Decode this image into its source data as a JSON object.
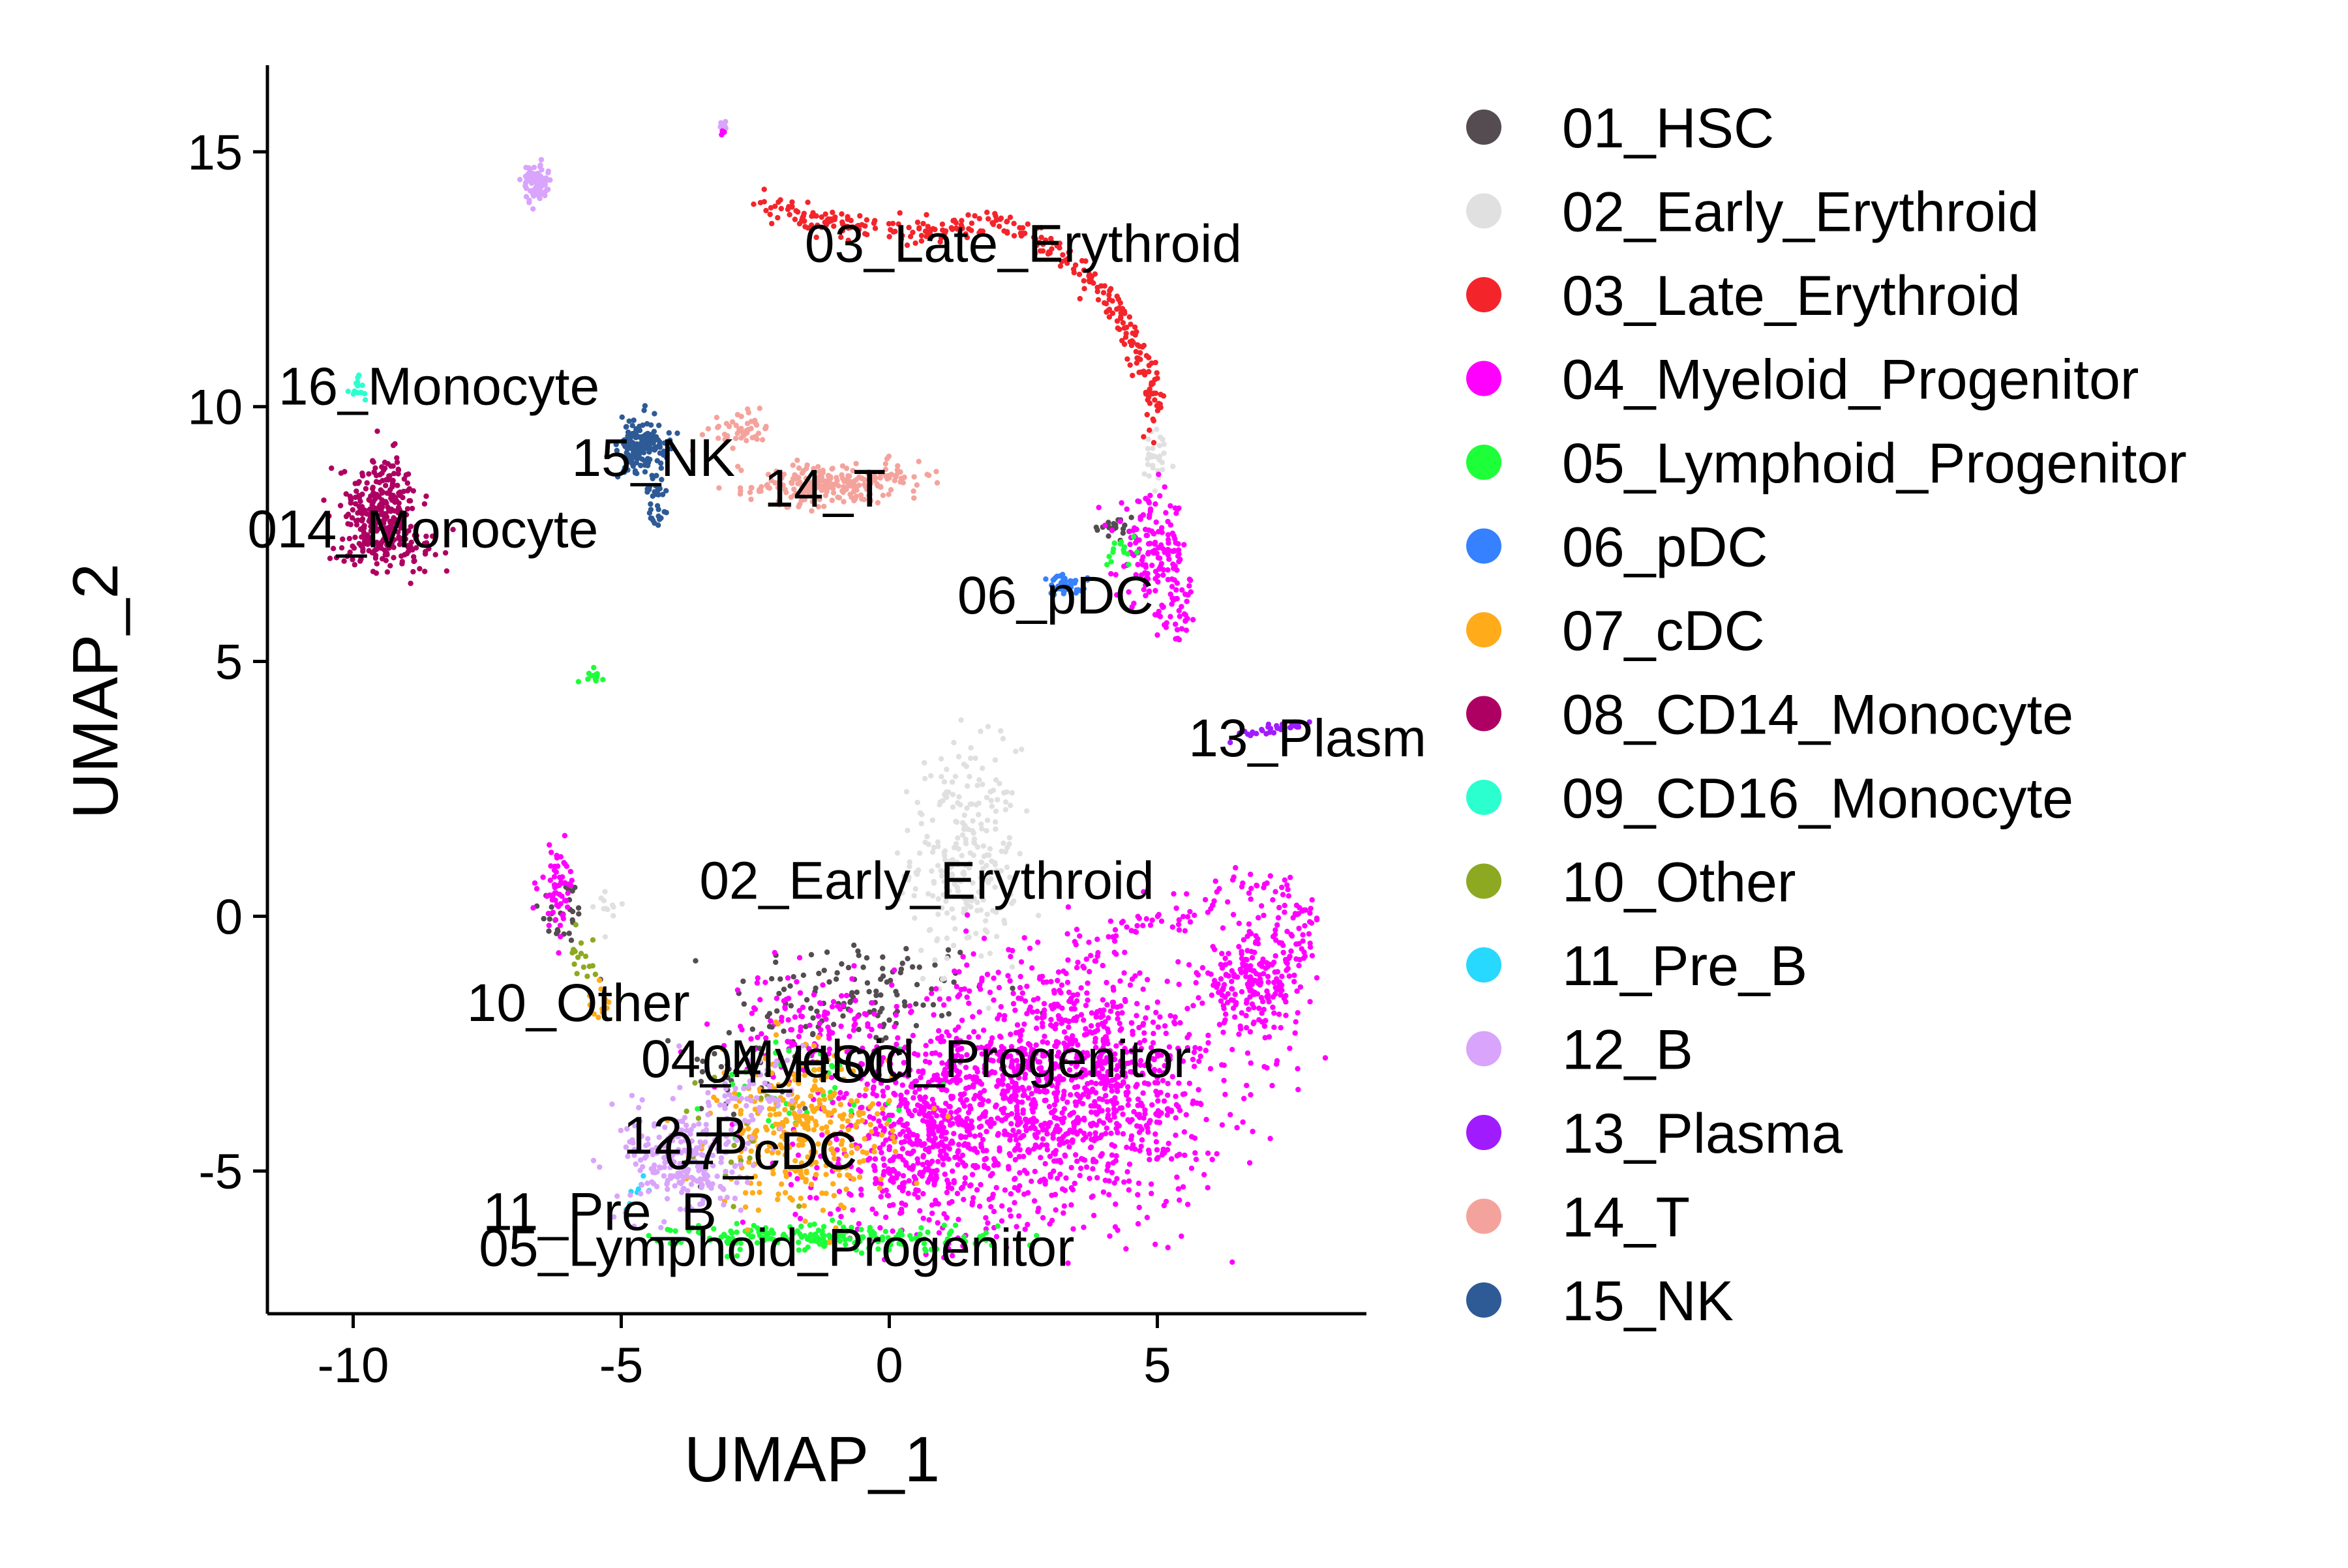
{
  "chart_data": {
    "type": "scatter",
    "xlabel": "UMAP_1",
    "ylabel": "UMAP_2",
    "xlim": [
      -11.6,
      8.9
    ],
    "ylim": [
      -7.8,
      16.7
    ],
    "xticks": [
      -10,
      -5,
      0,
      5
    ],
    "yticks": [
      -5,
      0,
      5,
      10,
      15
    ],
    "grid": false,
    "legend_position": "right",
    "series": [
      {
        "name": "01_HSC",
        "color": "#544C50",
        "blobs": [
          [
            -0.5,
            -1.5,
            2.2,
            1.0,
            120
          ],
          [
            4.2,
            7.6,
            0.4,
            0.3,
            20
          ],
          [
            -6.1,
            0.1,
            0.4,
            0.6,
            30
          ],
          [
            -2.5,
            -3.0,
            1.2,
            1.0,
            40
          ]
        ]
      },
      {
        "name": "02_Early_Erythroid",
        "color": "#E0E0E0",
        "blobs": [
          [
            1.4,
            1.2,
            0.9,
            1.9,
            260
          ],
          [
            5.0,
            8.9,
            0.3,
            0.6,
            30
          ],
          [
            -5.3,
            0.2,
            0.3,
            0.4,
            12
          ]
        ]
      },
      {
        "name": "03_Late_Erythroid",
        "color": "#F4242B",
        "curve": [
          [
            -2.4,
            13.9
          ],
          [
            -0.5,
            13.5
          ],
          [
            1.0,
            13.4
          ],
          [
            2.0,
            13.7
          ],
          [
            3.2,
            13.0
          ],
          [
            4.2,
            12.0
          ],
          [
            4.8,
            10.8
          ],
          [
            5.0,
            9.6
          ]
        ],
        "spread": 0.12,
        "count": 320
      },
      {
        "name": "04_Myeloid_Progenitor",
        "color": "#FF00FF",
        "blobs": [
          [
            3.2,
            -3.3,
            2.8,
            2.2,
            1300
          ],
          [
            0.6,
            -4.5,
            2.0,
            1.6,
            500
          ],
          [
            6.8,
            -1.3,
            0.9,
            0.9,
            200
          ],
          [
            4.9,
            7.2,
            0.6,
            0.9,
            140
          ],
          [
            5.4,
            6.0,
            0.4,
            0.6,
            50
          ],
          [
            -6.2,
            0.6,
            0.3,
            0.7,
            60
          ],
          [
            -1.5,
            -2.2,
            1.3,
            0.9,
            120
          ]
        ],
        "curve": [
          [
            3.5,
            -1.0
          ],
          [
            4.5,
            -0.2
          ],
          [
            6.0,
            0.2
          ],
          [
            7.2,
            0.6
          ],
          [
            7.7,
            0.0
          ],
          [
            7.5,
            -0.8
          ],
          [
            7.0,
            -1.3
          ]
        ],
        "spread": 0.22,
        "count": 140
      },
      {
        "name": "05_Lymphoid_Progenitor",
        "color": "#1DFF38",
        "blobs": [
          [
            -1.0,
            -6.3,
            2.6,
            0.25,
            200
          ],
          [
            -5.5,
            4.7,
            0.15,
            0.12,
            14
          ],
          [
            4.3,
            7.2,
            0.3,
            0.3,
            15
          ],
          [
            -1.5,
            -3.5,
            1.5,
            1.0,
            40
          ]
        ]
      },
      {
        "name": "06_pDC",
        "color": "#3581FF",
        "blobs": [
          [
            3.3,
            6.5,
            0.4,
            0.18,
            40
          ]
        ]
      },
      {
        "name": "07_cDC",
        "color": "#FFAB1A",
        "blobs": [
          [
            -1.6,
            -4.2,
            1.5,
            1.4,
            320
          ],
          [
            -5.4,
            -1.8,
            0.2,
            0.6,
            12
          ]
        ]
      },
      {
        "name": "08_CD14_Monocyte",
        "color": "#AD0062",
        "blobs": [
          [
            -9.5,
            8.0,
            0.65,
            0.9,
            260
          ],
          [
            -9.2,
            7.3,
            0.9,
            0.35,
            80
          ]
        ]
      },
      {
        "name": "09_CD16_Monocyte",
        "color": "#2BFFD0",
        "blobs": [
          [
            -9.9,
            10.4,
            0.12,
            0.25,
            14
          ]
        ]
      },
      {
        "name": "10_Other",
        "color": "#8CA921",
        "blobs": [
          [
            -5.7,
            -0.8,
            0.25,
            0.6,
            16
          ],
          [
            -3.0,
            -4.2,
            1.2,
            1.0,
            20
          ]
        ]
      },
      {
        "name": "11_Pre_B",
        "color": "#27D8FF",
        "blobs": [
          [
            -4.6,
            -5.5,
            0.5,
            0.5,
            8
          ]
        ]
      },
      {
        "name": "12_B",
        "color": "#D9A4FB",
        "blobs": [
          [
            -6.6,
            14.4,
            0.2,
            0.35,
            90
          ],
          [
            -3.8,
            -4.8,
            1.0,
            1.0,
            240
          ],
          [
            -2.5,
            -3.5,
            0.8,
            0.8,
            60
          ]
        ]
      },
      {
        "name": "13_Plasma",
        "color": "#A01CFF",
        "curve": [
          [
            6.3,
            3.5
          ],
          [
            7.8,
            3.8
          ]
        ],
        "spread": 0.05,
        "count": 30
      },
      {
        "name": "14_T",
        "color": "#F4A39C",
        "blobs": [
          [
            -1.1,
            8.5,
            1.6,
            0.35,
            240
          ],
          [
            -2.7,
            9.5,
            0.5,
            0.3,
            50
          ]
        ]
      },
      {
        "name": "15_NK",
        "color": "#2E5A96",
        "blobs": [
          [
            -4.6,
            9.2,
            0.4,
            0.5,
            170
          ],
          [
            -4.3,
            8.0,
            0.2,
            0.5,
            30
          ]
        ]
      }
    ],
    "extra_points": [
      {
        "series": "12_B",
        "x": -3.1,
        "y": 15.5,
        "count": 6,
        "sd": 0.04
      },
      {
        "series": "04_Myeloid_Progenitor",
        "x": -3.1,
        "y": 15.4,
        "count": 3,
        "sd": 0.03
      }
    ],
    "cluster_labels": [
      {
        "text": "03_Late_Erythroid",
        "x": 2.5,
        "y": 13.2
      },
      {
        "text": "16_Monocyte",
        "x": -8.4,
        "y": 10.4
      },
      {
        "text": "15_NK",
        "x": -4.4,
        "y": 9.0
      },
      {
        "text": "14_T",
        "x": -1.2,
        "y": 8.4
      },
      {
        "text": "014_Monocyte",
        "x": -8.7,
        "y": 7.6
      },
      {
        "text": "06_pDC",
        "x": 3.1,
        "y": 6.3
      },
      {
        "text": "13_Plasm",
        "x": 7.8,
        "y": 3.5
      },
      {
        "text": "02_Early_Erythroid",
        "x": 0.7,
        "y": 0.7
      },
      {
        "text": "10_Other",
        "x": -5.8,
        "y": -1.7
      },
      {
        "text": "04_Myeloid_Progenitor",
        "x": 0.5,
        "y": -2.8
      },
      {
        "text": "04_HSC",
        "x": -1.6,
        "y": -2.9
      },
      {
        "text": "12_B",
        "x": -3.8,
        "y": -4.3
      },
      {
        "text": "07_cDC",
        "x": -2.4,
        "y": -4.6
      },
      {
        "text": "11_Pre_B",
        "x": -5.4,
        "y": -5.8
      },
      {
        "text": "05_Lymphoid_Progenitor",
        "x": -2.1,
        "y": -6.5
      }
    ]
  }
}
